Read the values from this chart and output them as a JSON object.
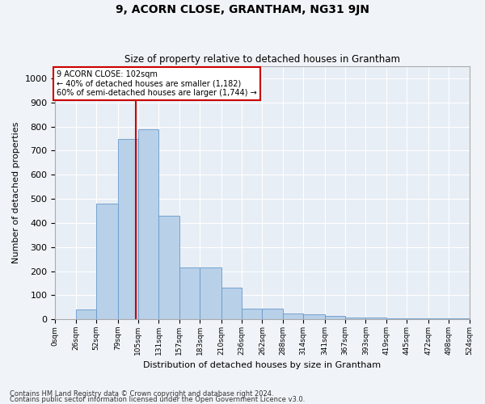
{
  "title": "9, ACORN CLOSE, GRANTHAM, NG31 9JN",
  "subtitle": "Size of property relative to detached houses in Grantham",
  "xlabel": "Distribution of detached houses by size in Grantham",
  "ylabel": "Number of detached properties",
  "bar_color": "#b8d0e8",
  "bar_edge_color": "#6699cc",
  "bg_color": "#e8eef5",
  "fig_bg_color": "#f0f4f8",
  "grid_color": "#ffffff",
  "annotation_line_color": "#cc0000",
  "annotation_box_color": "#cc0000",
  "property_size": 102,
  "annotation_text_line1": "9 ACORN CLOSE: 102sqm",
  "annotation_text_line2": "← 40% of detached houses are smaller (1,182)",
  "annotation_text_line3": "60% of semi-detached houses are larger (1,744) →",
  "footnote1": "Contains HM Land Registry data © Crown copyright and database right 2024.",
  "footnote2": "Contains public sector information licensed under the Open Government Licence v3.0.",
  "bins": [
    0,
    26,
    52,
    79,
    105,
    131,
    157,
    183,
    210,
    236,
    262,
    288,
    314,
    341,
    367,
    393,
    419,
    445,
    472,
    498,
    524
  ],
  "counts": [
    0,
    40,
    480,
    750,
    790,
    430,
    215,
    215,
    130,
    45,
    45,
    25,
    20,
    15,
    8,
    8,
    5,
    5,
    5,
    5
  ],
  "ylim": [
    0,
    1050
  ],
  "yticks": [
    0,
    100,
    200,
    300,
    400,
    500,
    600,
    700,
    800,
    900,
    1000
  ]
}
